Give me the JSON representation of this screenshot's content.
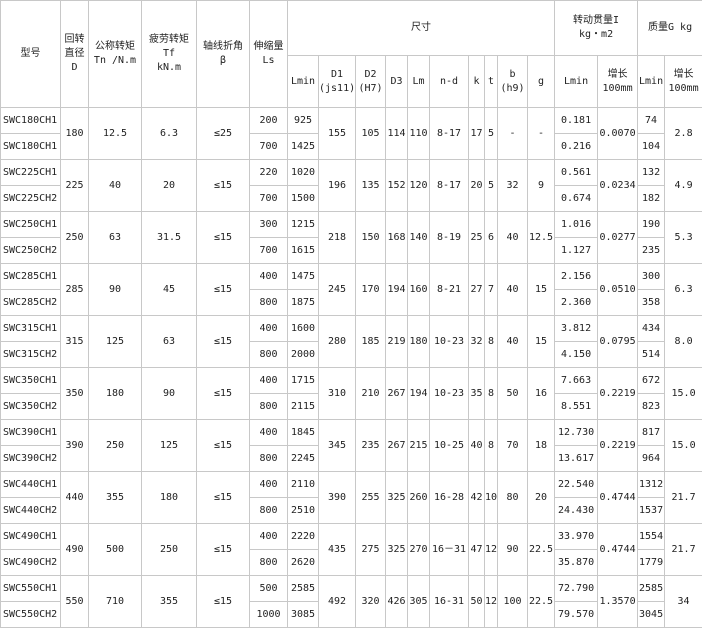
{
  "header": {
    "model": "型号",
    "diameter": [
      "回转",
      "直径",
      "D"
    ],
    "rated_torque": [
      "公称转矩",
      "Tn /N.m"
    ],
    "fatigue_torque": [
      "疲劳转矩",
      "Tf",
      "kN.m"
    ],
    "angle": [
      "轴线折角",
      "β"
    ],
    "stroke": [
      "伸缩量",
      "Ls"
    ],
    "dimensions": "尺寸",
    "inertia": [
      "转动贯量I",
      "kg・m2"
    ],
    "mass": "质量G kg",
    "sub": [
      [
        "Lmin"
      ],
      [
        "D1",
        "(js11)"
      ],
      [
        "D2",
        "(H7)"
      ],
      [
        "D3"
      ],
      [
        "Lm"
      ],
      [
        "n-d"
      ],
      [
        "k"
      ],
      [
        "t"
      ],
      [
        "b",
        "(h9)"
      ],
      [
        "g"
      ],
      [
        "Lmin"
      ],
      [
        "增长",
        "100mm"
      ],
      [
        "Lmin"
      ],
      [
        "增长",
        "100mm"
      ]
    ]
  },
  "groups": [
    {
      "models": [
        "SWC180CH1",
        "SWC180CH1"
      ],
      "D": "180",
      "Tn": "12.5",
      "Tf": "6.3",
      "angle": "≤25",
      "Ls": [
        "200",
        "700"
      ],
      "Lmin": [
        "925",
        "1425"
      ],
      "D1": "155",
      "D2": "105",
      "D3": "114",
      "Lm": "110",
      "nd": "8-17",
      "k": "17",
      "t": "5",
      "b": "-",
      "g": "-",
      "I": [
        "0.181",
        "0.216"
      ],
      "I_inc": "0.0070",
      "G": [
        "74",
        "104"
      ],
      "G_inc": "2.8"
    },
    {
      "models": [
        "SWC225CH1",
        "SWC225CH2"
      ],
      "D": "225",
      "Tn": "40",
      "Tf": "20",
      "angle": "≤15",
      "Ls": [
        "220",
        "700"
      ],
      "Lmin": [
        "1020",
        "1500"
      ],
      "D1": "196",
      "D2": "135",
      "D3": "152",
      "Lm": "120",
      "nd": "8-17",
      "k": "20",
      "t": "5",
      "b": "32",
      "g": "9",
      "I": [
        "0.561",
        "0.674"
      ],
      "I_inc": "0.0234",
      "G": [
        "132",
        "182"
      ],
      "G_inc": "4.9"
    },
    {
      "models": [
        "SWC250CH1",
        "SWC250CH2"
      ],
      "D": "250",
      "Tn": "63",
      "Tf": "31.5",
      "angle": "≤15",
      "Ls": [
        "300",
        "700"
      ],
      "Lmin": [
        "1215",
        "1615"
      ],
      "D1": "218",
      "D2": "150",
      "D3": "168",
      "Lm": "140",
      "nd": "8-19",
      "k": "25",
      "t": "6",
      "b": "40",
      "g": "12.5",
      "I": [
        "1.016",
        "1.127"
      ],
      "I_inc": "0.0277",
      "G": [
        "190",
        "235"
      ],
      "G_inc": "5.3"
    },
    {
      "models": [
        "SWC285CH1",
        "SWC285CH2"
      ],
      "D": "285",
      "Tn": "90",
      "Tf": "45",
      "angle": "≤15",
      "Ls": [
        "400",
        "800"
      ],
      "Lmin": [
        "1475",
        "1875"
      ],
      "D1": "245",
      "D2": "170",
      "D3": "194",
      "Lm": "160",
      "nd": "8-21",
      "k": "27",
      "t": "7",
      "b": "40",
      "g": "15",
      "I": [
        "2.156",
        "2.360"
      ],
      "I_inc": "0.0510",
      "G": [
        "300",
        "358"
      ],
      "G_inc": "6.3"
    },
    {
      "models": [
        "SWC315CH1",
        "SWC315CH2"
      ],
      "D": "315",
      "Tn": "125",
      "Tf": "63",
      "angle": "≤15",
      "Ls": [
        "400",
        "800"
      ],
      "Lmin": [
        "1600",
        "2000"
      ],
      "D1": "280",
      "D2": "185",
      "D3": "219",
      "Lm": "180",
      "nd": "10-23",
      "k": "32",
      "t": "8",
      "b": "40",
      "g": "15",
      "I": [
        "3.812",
        "4.150"
      ],
      "I_inc": "0.0795",
      "G": [
        "434",
        "514"
      ],
      "G_inc": "8.0"
    },
    {
      "models": [
        "SWC350CH1",
        "SWC350CH2"
      ],
      "D": "350",
      "Tn": "180",
      "Tf": "90",
      "angle": "≤15",
      "Ls": [
        "400",
        "800"
      ],
      "Lmin": [
        "1715",
        "2115"
      ],
      "D1": "310",
      "D2": "210",
      "D3": "267",
      "Lm": "194",
      "nd": "10-23",
      "k": "35",
      "t": "8",
      "b": "50",
      "g": "16",
      "I": [
        "7.663",
        "8.551"
      ],
      "I_inc": "0.2219",
      "G": [
        "672",
        "823"
      ],
      "G_inc": "15.0"
    },
    {
      "models": [
        "SWC390CH1",
        "SWC390CH2"
      ],
      "D": "390",
      "Tn": "250",
      "Tf": "125",
      "angle": "≤15",
      "Ls": [
        "400",
        "800"
      ],
      "Lmin": [
        "1845",
        "2245"
      ],
      "D1": "345",
      "D2": "235",
      "D3": "267",
      "Lm": "215",
      "nd": "10-25",
      "k": "40",
      "t": "8",
      "b": "70",
      "g": "18",
      "I": [
        "12.730",
        "13.617"
      ],
      "I_inc": "0.2219",
      "G": [
        "817",
        "964"
      ],
      "G_inc": "15.0"
    },
    {
      "models": [
        "SWC440CH1",
        "SWC440CH2"
      ],
      "D": "440",
      "Tn": "355",
      "Tf": "180",
      "angle": "≤15",
      "Ls": [
        "400",
        "800"
      ],
      "Lmin": [
        "2110",
        "2510"
      ],
      "D1": "390",
      "D2": "255",
      "D3": "325",
      "Lm": "260",
      "nd": "16-28",
      "k": "42",
      "t": "10",
      "b": "80",
      "g": "20",
      "I": [
        "22.540",
        "24.430"
      ],
      "I_inc": "0.4744",
      "G": [
        "1312",
        "1537"
      ],
      "G_inc": "21.7"
    },
    {
      "models": [
        "SWC490CH1",
        "SWC490CH2"
      ],
      "D": "490",
      "Tn": "500",
      "Tf": "250",
      "angle": "≤15",
      "Ls": [
        "400",
        "800"
      ],
      "Lmin": [
        "2220",
        "2620"
      ],
      "D1": "435",
      "D2": "275",
      "D3": "325",
      "Lm": "270",
      "nd": "16－31",
      "k": "47",
      "t": "12",
      "b": "90",
      "g": "22.5",
      "I": [
        "33.970",
        "35.870"
      ],
      "I_inc": "0.4744",
      "G": [
        "1554",
        "1779"
      ],
      "G_inc": "21.7"
    },
    {
      "models": [
        "SWC550CH1",
        "SWC550CH2"
      ],
      "D": "550",
      "Tn": "710",
      "Tf": "355",
      "angle": "≤15",
      "Ls": [
        "500",
        "1000"
      ],
      "Lmin": [
        "2585",
        "3085"
      ],
      "D1": "492",
      "D2": "320",
      "D3": "426",
      "Lm": "305",
      "nd": "16-31",
      "k": "50",
      "t": "12",
      "b": "100",
      "g": "22.5",
      "I": [
        "72.790",
        "79.570"
      ],
      "I_inc": "1.3570",
      "G": [
        "2585",
        "3045"
      ],
      "G_inc": "34"
    }
  ]
}
